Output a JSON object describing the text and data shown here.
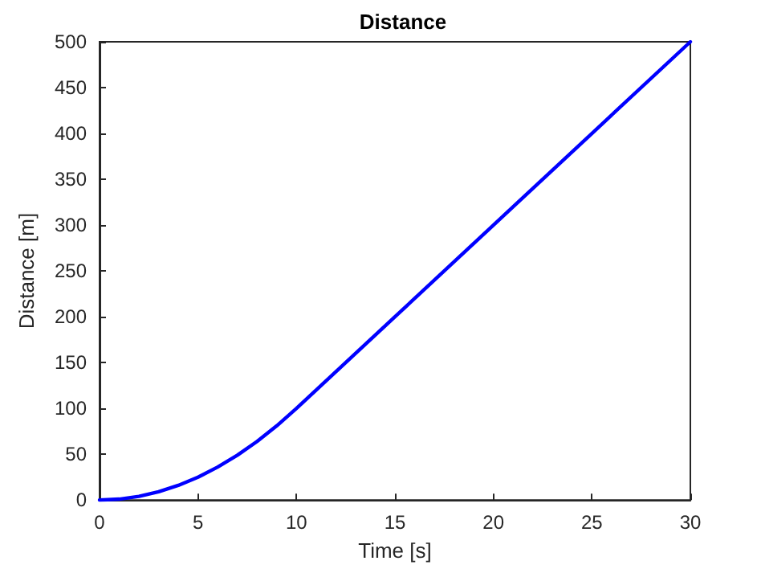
{
  "chart_data": {
    "type": "line",
    "title": "Distance",
    "xlabel": "Time [s]",
    "ylabel": "Distance [m]",
    "x": [
      0,
      1,
      2,
      3,
      4,
      5,
      6,
      7,
      8,
      9,
      10,
      15,
      20,
      25,
      30
    ],
    "series": [
      {
        "color": "#0000ff",
        "values": [
          0,
          1,
          4,
          9,
          16,
          25,
          36,
          49,
          64,
          81,
          100,
          200,
          300,
          400,
          500
        ]
      }
    ],
    "xlim": [
      0,
      30
    ],
    "xticks": [
      0,
      5,
      10,
      15,
      20,
      25,
      30
    ],
    "ylim": [
      0,
      500
    ],
    "yticks": [
      0,
      50,
      100,
      150,
      200,
      250,
      300,
      350,
      400,
      450,
      500
    ],
    "grid": false,
    "marker": "none",
    "line_style": "solid"
  }
}
